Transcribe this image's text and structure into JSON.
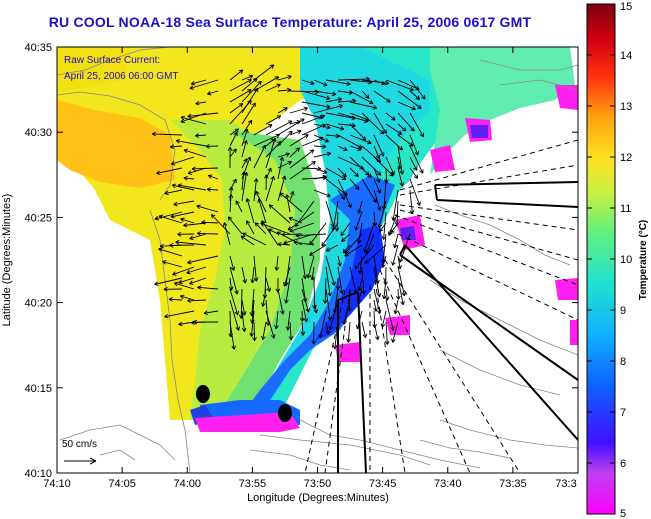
{
  "title": "RU COOL  NOAA-18  Sea Surface Temperature:  April 25, 2006 0617 GMT",
  "legend_box": {
    "line1": "Raw Surface Current:",
    "line2": "April 25, 2006 06:00 GMT",
    "color": "#1a10c8"
  },
  "scale": {
    "label": "50 cm/s"
  },
  "axes": {
    "xlabel": "Longitude (Degrees:Minutes)",
    "ylabel": "Latitude (Degrees:Minutes)",
    "xticks": [
      "74:10",
      "74:05",
      "74:00",
      "73:55",
      "73:50",
      "73:45",
      "73:40",
      "73:35",
      "73:3"
    ],
    "yticks": [
      "40:35",
      "40:30",
      "40:25",
      "40:20",
      "40:15",
      "40:10"
    ]
  },
  "colorbar": {
    "label": "Temperature (°C)",
    "ticks": [
      "15",
      "14",
      "13",
      "12",
      "11",
      "10",
      "9",
      "8",
      "7",
      "6",
      "5"
    ],
    "min": 5,
    "max": 15
  },
  "markers": [
    "station-1",
    "station-2"
  ]
}
